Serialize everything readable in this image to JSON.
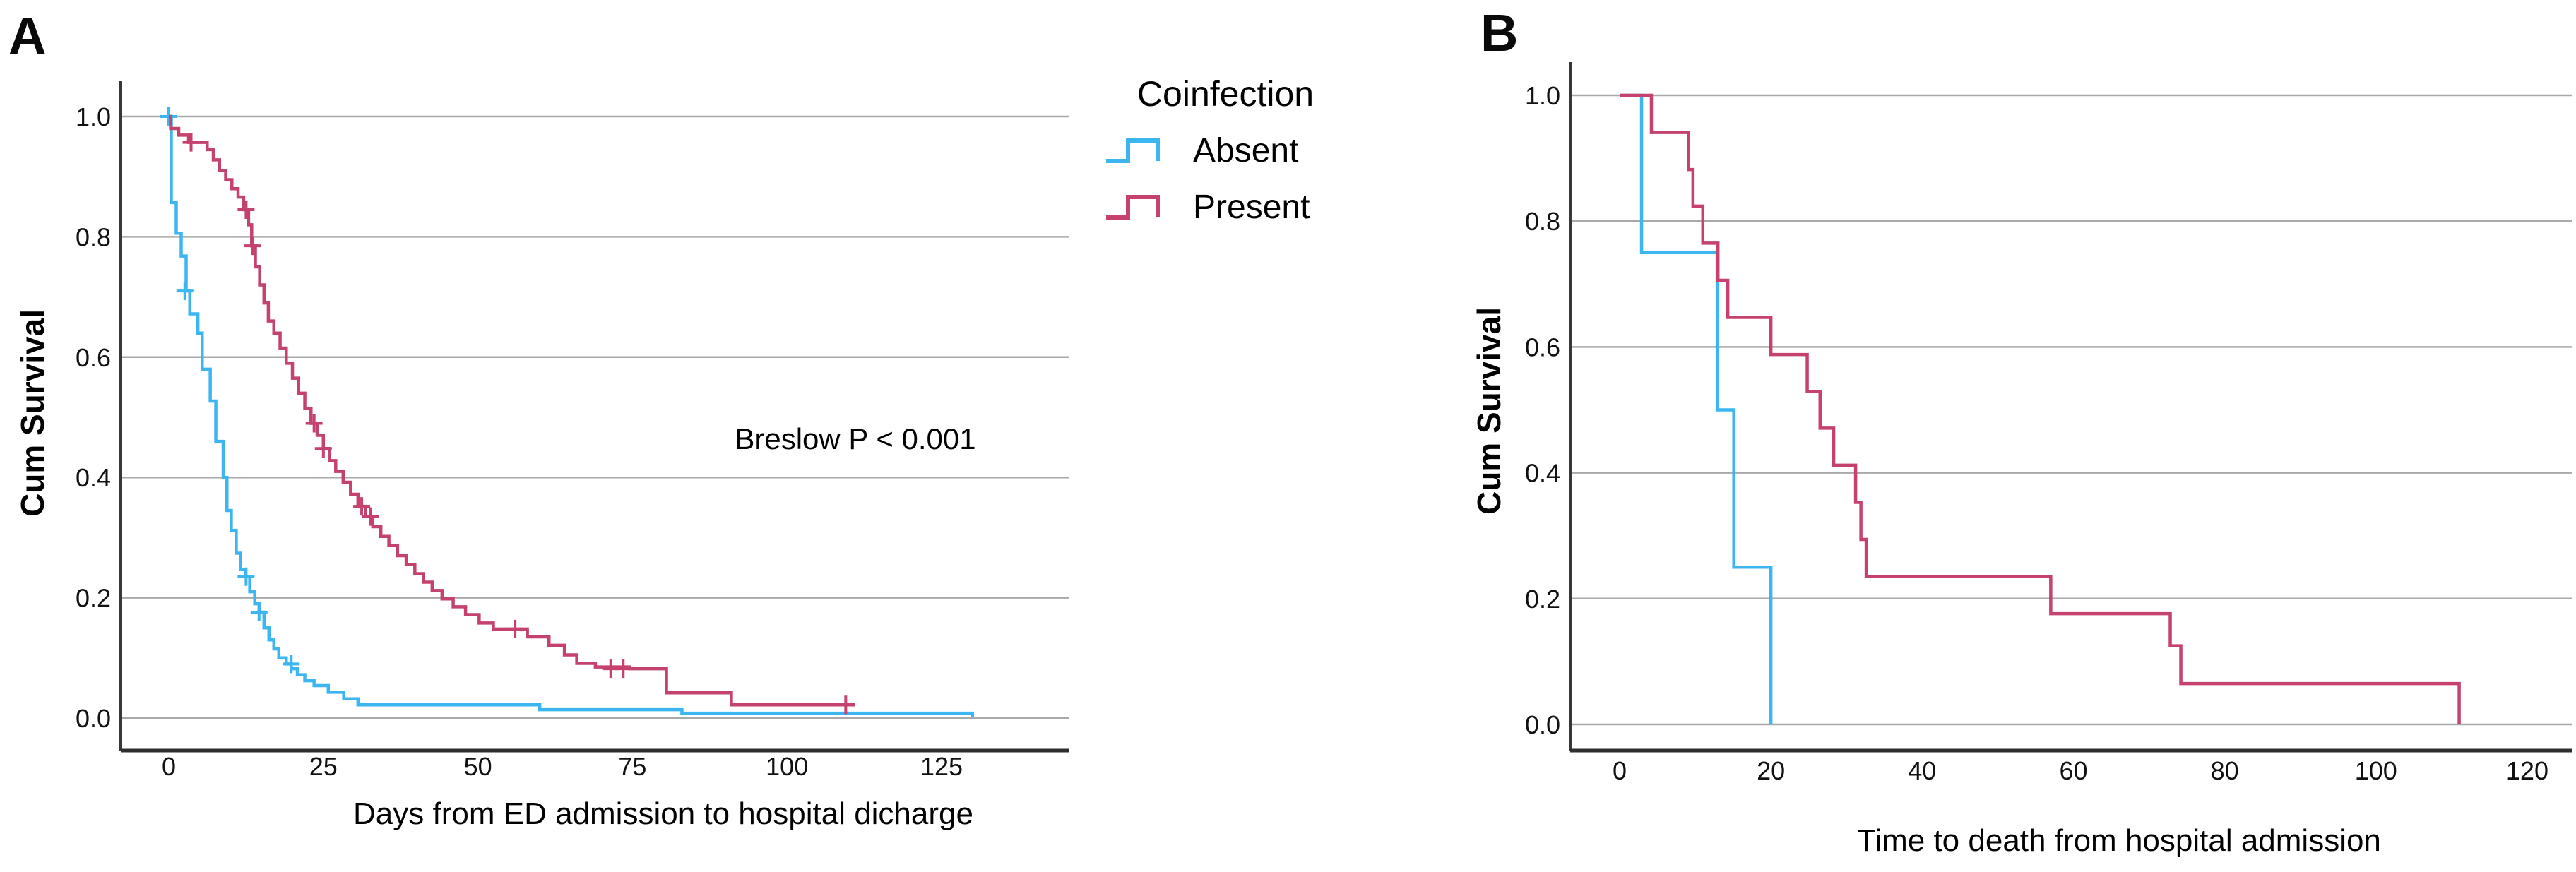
{
  "figure": {
    "panel_a_letter": "A",
    "panel_b_letter": "B"
  },
  "colors": {
    "absent": "#3CB6F0",
    "present": "#C5416E",
    "grid": "#A9A9A9",
    "axis": "#383838",
    "text": "#000000",
    "background": "#FFFFFF"
  },
  "legend": {
    "title": "Coinfection",
    "items": [
      {
        "label": "Absent",
        "color": "#3CB6F0",
        "symbol": "step-line"
      },
      {
        "label": "Present",
        "color": "#C5416E",
        "symbol": "step-line"
      }
    ]
  },
  "chart_data": [
    {
      "type": "line",
      "subtype": "kaplan-meier-step",
      "panel": "A",
      "title": "",
      "xlabel": "Days from ED admission to hospital dicharge",
      "ylabel": "Cum Survival",
      "annotation": "Breslow P < 0.001",
      "x_ticks": [
        0,
        25,
        50,
        75,
        100,
        125
      ],
      "y_ticks": [
        0.0,
        0.2,
        0.4,
        0.6,
        0.8,
        1.0
      ],
      "xlim": [
        -8,
        146
      ],
      "ylim": [
        0,
        1.0
      ],
      "grid": "horizontal",
      "legend_position": "outside-top-right",
      "series": [
        {
          "name": "Absent",
          "color": "#3CB6F0",
          "steps": [
            [
              0,
              1.0
            ],
            [
              0.4,
              0.857
            ],
            [
              1.2,
              0.806
            ],
            [
              2,
              0.768
            ],
            [
              2.8,
              0.71
            ],
            [
              3.4,
              0.672
            ],
            [
              4.7,
              0.64
            ],
            [
              5.4,
              0.58
            ],
            [
              6.7,
              0.527
            ],
            [
              7.6,
              0.46
            ],
            [
              8.8,
              0.4
            ],
            [
              9.4,
              0.345
            ],
            [
              10.1,
              0.312
            ],
            [
              10.9,
              0.274
            ],
            [
              11.6,
              0.247
            ],
            [
              12.4,
              0.235
            ],
            [
              13.1,
              0.21
            ],
            [
              13.9,
              0.19
            ],
            [
              14.6,
              0.176
            ],
            [
              15.4,
              0.15
            ],
            [
              16.2,
              0.13
            ],
            [
              17,
              0.115
            ],
            [
              17.8,
              0.1
            ],
            [
              19,
              0.09
            ],
            [
              19.8,
              0.082
            ],
            [
              20.8,
              0.072
            ],
            [
              22,
              0.062
            ],
            [
              23.5,
              0.054
            ],
            [
              25.8,
              0.043
            ],
            [
              28.3,
              0.032
            ],
            [
              30.6,
              0.022
            ],
            [
              60,
              0.014
            ],
            [
              83,
              0.008
            ],
            [
              130,
              0.002
            ]
          ],
          "censors": [
            [
              0,
              1.0
            ],
            [
              2.6,
              0.71
            ],
            [
              12.5,
              0.235
            ],
            [
              14.6,
              0.176
            ],
            [
              19.8,
              0.09
            ]
          ]
        },
        {
          "name": "Present",
          "color": "#C5416E",
          "steps": [
            [
              0,
              1.0
            ],
            [
              0.3,
              0.98
            ],
            [
              1.6,
              0.969
            ],
            [
              3.2,
              0.957
            ],
            [
              6.2,
              0.945
            ],
            [
              7.2,
              0.928
            ],
            [
              8.2,
              0.91
            ],
            [
              9.2,
              0.895
            ],
            [
              10.2,
              0.88
            ],
            [
              11.2,
              0.866
            ],
            [
              12.1,
              0.845
            ],
            [
              12.9,
              0.82
            ],
            [
              13.4,
              0.785
            ],
            [
              14,
              0.75
            ],
            [
              14.7,
              0.72
            ],
            [
              15.4,
              0.69
            ],
            [
              16.1,
              0.66
            ],
            [
              17,
              0.64
            ],
            [
              18,
              0.615
            ],
            [
              19,
              0.59
            ],
            [
              20,
              0.565
            ],
            [
              21,
              0.54
            ],
            [
              22,
              0.515
            ],
            [
              23,
              0.49
            ],
            [
              24,
              0.47
            ],
            [
              25,
              0.448
            ],
            [
              26,
              0.428
            ],
            [
              27,
              0.41
            ],
            [
              28.2,
              0.392
            ],
            [
              29.4,
              0.372
            ],
            [
              30.6,
              0.352
            ],
            [
              31.8,
              0.335
            ],
            [
              33,
              0.318
            ],
            [
              34.3,
              0.302
            ],
            [
              35.6,
              0.287
            ],
            [
              37,
              0.27
            ],
            [
              38.4,
              0.255
            ],
            [
              39.8,
              0.24
            ],
            [
              41.2,
              0.226
            ],
            [
              42.6,
              0.212
            ],
            [
              44.2,
              0.198
            ],
            [
              46,
              0.185
            ],
            [
              48,
              0.172
            ],
            [
              50.2,
              0.158
            ],
            [
              52.5,
              0.148
            ],
            [
              58,
              0.135
            ],
            [
              61.5,
              0.121
            ],
            [
              64,
              0.105
            ],
            [
              66,
              0.091
            ],
            [
              69,
              0.085
            ],
            [
              74.5,
              0.082
            ],
            [
              80.5,
              0.042
            ],
            [
              91,
              0.022
            ],
            [
              111,
              0.022
            ]
          ],
          "censors": [
            [
              3.6,
              0.957
            ],
            [
              12.5,
              0.845
            ],
            [
              13.6,
              0.785
            ],
            [
              23.5,
              0.49
            ],
            [
              25,
              0.448
            ],
            [
              31.2,
              0.352
            ],
            [
              32.6,
              0.335
            ],
            [
              56,
              0.148
            ],
            [
              71.5,
              0.082
            ],
            [
              73.5,
              0.082
            ],
            [
              109.5,
              0.022
            ]
          ]
        }
      ]
    },
    {
      "type": "line",
      "subtype": "kaplan-meier-step",
      "panel": "B",
      "title": "",
      "xlabel": "Time to death from hospital admission",
      "ylabel": "Cum Survival",
      "annotation": null,
      "x_ticks": [
        0,
        20,
        40,
        60,
        80,
        100,
        120
      ],
      "y_ticks": [
        0.0,
        0.2,
        0.4,
        0.6,
        0.8,
        1.0
      ],
      "xlim": [
        -7,
        126
      ],
      "ylim": [
        0,
        1.0
      ],
      "grid": "horizontal",
      "legend_position": "none",
      "series": [
        {
          "name": "Absent",
          "color": "#3CB6F0",
          "steps": [
            [
              0,
              1.0
            ],
            [
              2.9,
              0.75
            ],
            [
              12.9,
              0.5
            ],
            [
              15.1,
              0.25
            ],
            [
              20,
              0.0
            ]
          ],
          "censors": []
        },
        {
          "name": "Present",
          "color": "#C5416E",
          "steps": [
            [
              0,
              1.0
            ],
            [
              4.2,
              0.941
            ],
            [
              9.1,
              0.882
            ],
            [
              9.7,
              0.824
            ],
            [
              11,
              0.765
            ],
            [
              13,
              0.706
            ],
            [
              14.3,
              0.647
            ],
            [
              20,
              0.588
            ],
            [
              24.8,
              0.529
            ],
            [
              26.5,
              0.471
            ],
            [
              28.3,
              0.412
            ],
            [
              31.2,
              0.353
            ],
            [
              31.9,
              0.294
            ],
            [
              32.6,
              0.235
            ],
            [
              57,
              0.176
            ],
            [
              72.8,
              0.125
            ],
            [
              74.2,
              0.065
            ],
            [
              111,
              0.0
            ]
          ],
          "censors": []
        }
      ]
    }
  ]
}
